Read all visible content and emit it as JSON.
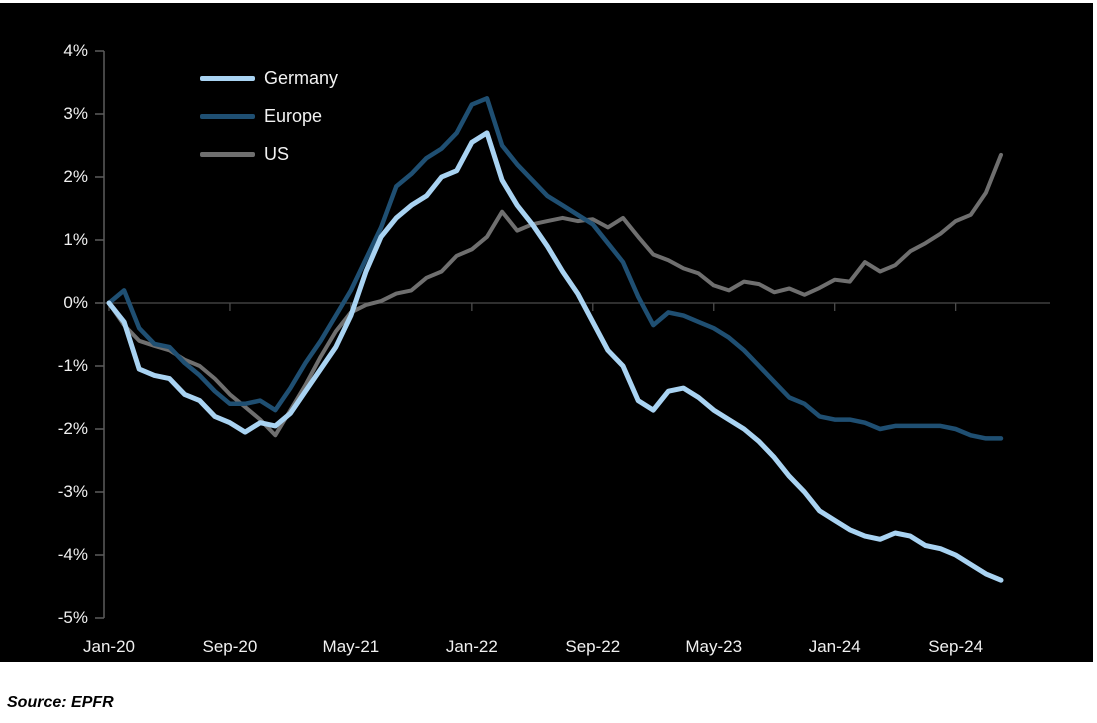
{
  "source_note": "Source: EPFR",
  "panel_background": "#000000",
  "page_background": "#ffffff",
  "axis": {
    "spine_color": "#5c5c5c",
    "zero_line_color": "#4b4b4b",
    "label_color": "#f0f0f0"
  },
  "chart_data": {
    "type": "line",
    "title": "",
    "xlabel": "",
    "ylabel": "",
    "x_unit": "month",
    "x_range": [
      "Jan-2020",
      "Dec-2024"
    ],
    "n_points": 60,
    "ylim": [
      -5,
      4
    ],
    "grid": "zero-line-only",
    "legend_position": "top-left",
    "y_tick_values": [
      4,
      3,
      2,
      1,
      0,
      -1,
      -2,
      -3,
      -4,
      -5
    ],
    "y_tick_labels": [
      "4%",
      "3%",
      "2%",
      "1%",
      "0%",
      "-1%",
      "-2%",
      "-3%",
      "-4%",
      "-5%"
    ],
    "x_tick_month_indices": [
      0,
      8,
      16,
      24,
      32,
      40,
      48,
      56
    ],
    "x_tick_labels": [
      "Jan-20",
      "Sep-20",
      "May-21",
      "Jan-22",
      "Sep-22",
      "May-23",
      "Jan-24",
      "Sep-24"
    ],
    "series": [
      {
        "name": "US",
        "color": "#6f6f6f",
        "stroke_width": 4,
        "values": [
          0.0,
          -0.35,
          -0.6,
          -0.68,
          -0.75,
          -0.9,
          -1.0,
          -1.2,
          -1.45,
          -1.65,
          -1.85,
          -2.1,
          -1.7,
          -1.3,
          -0.85,
          -0.45,
          -0.15,
          -0.03,
          0.03,
          0.15,
          0.2,
          0.4,
          0.5,
          0.75,
          0.85,
          1.05,
          1.45,
          1.15,
          1.25,
          1.3,
          1.35,
          1.3,
          1.33,
          1.2,
          1.35,
          1.05,
          0.77,
          0.68,
          0.55,
          0.47,
          0.28,
          0.2,
          0.34,
          0.3,
          0.17,
          0.23,
          0.13,
          0.24,
          0.37,
          0.34,
          0.65,
          0.5,
          0.6,
          0.82,
          0.95,
          1.1,
          1.3,
          1.4,
          1.75,
          2.35
        ]
      },
      {
        "name": "Europe",
        "color": "#1f4f72",
        "stroke_width": 4.5,
        "values": [
          0.0,
          0.2,
          -0.4,
          -0.65,
          -0.7,
          -0.95,
          -1.15,
          -1.4,
          -1.6,
          -1.6,
          -1.55,
          -1.7,
          -1.35,
          -0.95,
          -0.6,
          -0.2,
          0.2,
          0.7,
          1.2,
          1.85,
          2.05,
          2.3,
          2.45,
          2.7,
          3.15,
          3.25,
          2.5,
          2.2,
          1.95,
          1.7,
          1.55,
          1.4,
          1.25,
          0.95,
          0.65,
          0.1,
          -0.35,
          -0.15,
          -0.2,
          -0.3,
          -0.4,
          -0.55,
          -0.75,
          -1.0,
          -1.25,
          -1.5,
          -1.6,
          -1.8,
          -1.85,
          -1.85,
          -1.9,
          -2.0,
          -1.95,
          -1.95,
          -1.95,
          -1.95,
          -2.0,
          -2.1,
          -2.15,
          -2.15
        ]
      },
      {
        "name": "Germany",
        "color": "#a9d3f2",
        "stroke_width": 5,
        "values": [
          0.0,
          -0.3,
          -1.05,
          -1.15,
          -1.2,
          -1.45,
          -1.55,
          -1.8,
          -1.9,
          -2.05,
          -1.9,
          -1.95,
          -1.75,
          -1.4,
          -1.05,
          -0.7,
          -0.2,
          0.5,
          1.05,
          1.35,
          1.55,
          1.7,
          2.0,
          2.1,
          2.55,
          2.7,
          1.95,
          1.55,
          1.25,
          0.9,
          0.5,
          0.15,
          -0.3,
          -0.75,
          -1.0,
          -1.55,
          -1.7,
          -1.4,
          -1.35,
          -1.5,
          -1.7,
          -1.85,
          -2.0,
          -2.2,
          -2.45,
          -2.75,
          -3.0,
          -3.3,
          -3.45,
          -3.6,
          -3.7,
          -3.75,
          -3.65,
          -3.7,
          -3.85,
          -3.9,
          -4.0,
          -4.15,
          -4.3,
          -4.4
        ]
      }
    ],
    "legend_order": [
      "Germany",
      "Europe",
      "US"
    ]
  }
}
